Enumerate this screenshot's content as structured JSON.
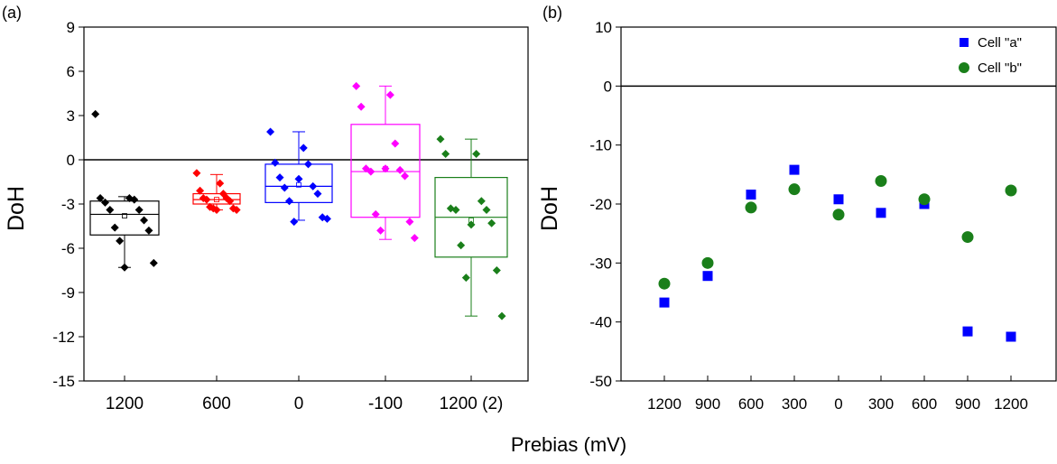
{
  "xlabel": "Prebias (mV)",
  "chart_data": [
    {
      "panel": "(a)",
      "type": "box",
      "ylabel": "DoH",
      "xlabel": "",
      "ylim": [
        -15,
        9
      ],
      "yticks": [
        9,
        6,
        3,
        0,
        -3,
        -6,
        -9,
        -12,
        -15
      ],
      "reference_line_y": 0,
      "groups": [
        {
          "label": "1200",
          "color": "#000000",
          "box": {
            "q1": -5.1,
            "median": -3.7,
            "q3": -2.8,
            "mean": -3.8,
            "whisker_low": -7.3,
            "whisker_high": -2.5
          },
          "points": [
            3.1,
            -2.6,
            -2.6,
            -2.7,
            -2.9,
            -3.4,
            -3.4,
            -4.1,
            -4.6,
            -4.8,
            -5.5,
            -7.0,
            -7.3
          ]
        },
        {
          "label": "600",
          "color": "#ff0000",
          "box": {
            "q1": -3.0,
            "median": -2.7,
            "q3": -2.3,
            "mean": -2.7,
            "whisker_low": -3.4,
            "whisker_high": -1.0
          },
          "points": [
            -0.9,
            -1.6,
            -2.1,
            -2.3,
            -2.6,
            -2.6,
            -2.7,
            -2.8,
            -3.2,
            -3.3,
            -3.3,
            -3.4,
            -3.4
          ]
        },
        {
          "label": "0",
          "color": "#0000ff",
          "box": {
            "q1": -2.9,
            "median": -1.8,
            "q3": -0.3,
            "mean": -1.7,
            "whisker_low": -4.1,
            "whisker_high": 1.9
          },
          "points": [
            1.9,
            0.8,
            -0.2,
            -0.3,
            -1.2,
            -1.8,
            -1.9,
            -2.3,
            -2.8,
            -3.9,
            -4.2,
            -4.0,
            -1.3
          ]
        },
        {
          "label": "-100",
          "color": "#ff00ff",
          "box": {
            "q1": -3.9,
            "median": -0.8,
            "q3": 2.4,
            "mean": -0.6,
            "whisker_low": -5.4,
            "whisker_high": 5.0
          },
          "points": [
            5.0,
            4.4,
            3.6,
            1.1,
            -0.6,
            -0.7,
            -0.8,
            -1.1,
            -3.7,
            -4.2,
            -4.8,
            -5.3,
            -0.6
          ]
        },
        {
          "label": "1200 (2)",
          "color": "#1a7f1a",
          "box": {
            "q1": -6.6,
            "median": -3.9,
            "q3": -1.2,
            "mean": -4.1,
            "whisker_low": -10.6,
            "whisker_high": 1.4
          },
          "points": [
            1.4,
            0.4,
            0.4,
            -2.8,
            -3.3,
            -3.4,
            -3.4,
            -4.3,
            -5.8,
            -7.5,
            -8.0,
            -10.6,
            -4.4
          ]
        }
      ]
    },
    {
      "panel": "(b)",
      "type": "scatter",
      "ylabel": "DoH",
      "xlabel": "",
      "ylim": [
        -50,
        10
      ],
      "yticks": [
        10,
        0,
        -10,
        -20,
        -30,
        -40,
        -50
      ],
      "reference_line_y": 0,
      "categories": [
        "1200",
        "900",
        "600",
        "300",
        "0",
        "300",
        "600",
        "900",
        "1200"
      ],
      "legend_position": "top-right",
      "series": [
        {
          "name": "Cell \"a\"",
          "marker": "square",
          "color": "#0000ff",
          "values": [
            -36.7,
            -32.2,
            -18.4,
            -14.2,
            -19.2,
            -21.5,
            -20.0,
            -41.6,
            -42.5
          ]
        },
        {
          "name": "Cell \"b\"",
          "marker": "circle",
          "color": "#1a7f1a",
          "values": [
            -33.5,
            -30.0,
            -20.6,
            -17.5,
            -21.8,
            -16.1,
            -19.2,
            -25.6,
            -17.7
          ]
        }
      ]
    }
  ]
}
